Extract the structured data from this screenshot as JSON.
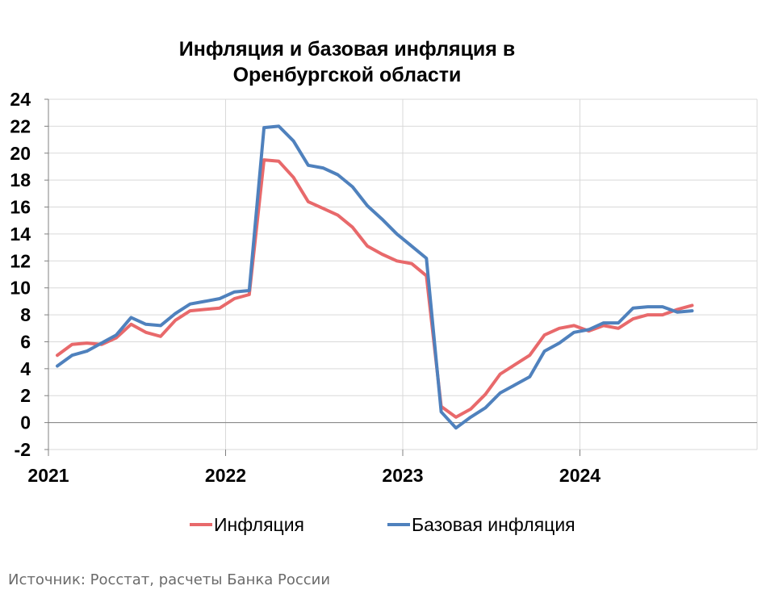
{
  "chart_data": {
    "type": "line",
    "title_lines": [
      "Инфляция и базовая инфляция в",
      "Оренбургской области"
    ],
    "xlabel": "",
    "ylabel": "",
    "ylim": [
      -2,
      24
    ],
    "yticks": [
      -2,
      0,
      2,
      4,
      6,
      8,
      10,
      12,
      14,
      16,
      18,
      20,
      22,
      24
    ],
    "ytick_labels": [
      "-2",
      "0",
      "2",
      "4",
      "6",
      "8",
      "10",
      "12",
      "14",
      "16",
      "18",
      "20",
      "22",
      "24"
    ],
    "x_tick_labels": [
      "2021",
      "2022",
      "2023",
      "2024"
    ],
    "x_start": "2021-01",
    "period": "monthly",
    "grid": true,
    "legend_position": "bottom",
    "series": [
      {
        "name": "Инфляция",
        "color": "#e8696b",
        "values": [
          5.0,
          5.8,
          5.9,
          5.8,
          6.3,
          7.3,
          6.7,
          6.4,
          7.6,
          8.3,
          8.4,
          8.5,
          9.2,
          9.5,
          19.5,
          19.4,
          18.2,
          16.4,
          15.9,
          15.4,
          14.5,
          13.1,
          12.5,
          12.0,
          11.8,
          10.9,
          1.2,
          0.4,
          1.0,
          2.1,
          3.6,
          4.3,
          5.0,
          6.5,
          7.0,
          7.2,
          6.8,
          7.2,
          7.0,
          7.7,
          8.0,
          8.0,
          8.4,
          8.7
        ]
      },
      {
        "name": "Базовая инфляция",
        "color": "#4f81bd",
        "values": [
          4.2,
          5.0,
          5.3,
          5.9,
          6.5,
          7.8,
          7.3,
          7.2,
          8.1,
          8.8,
          9.0,
          9.2,
          9.7,
          9.8,
          21.9,
          22.0,
          20.9,
          19.1,
          18.9,
          18.4,
          17.5,
          16.1,
          15.1,
          14.0,
          13.1,
          12.2,
          0.8,
          -0.4,
          0.4,
          1.1,
          2.2,
          2.8,
          3.4,
          5.3,
          5.9,
          6.7,
          6.9,
          7.4,
          7.4,
          8.5,
          8.6,
          8.6,
          8.2,
          8.3
        ]
      }
    ],
    "source": "Источник: Росстат, расчеты Банка России"
  }
}
